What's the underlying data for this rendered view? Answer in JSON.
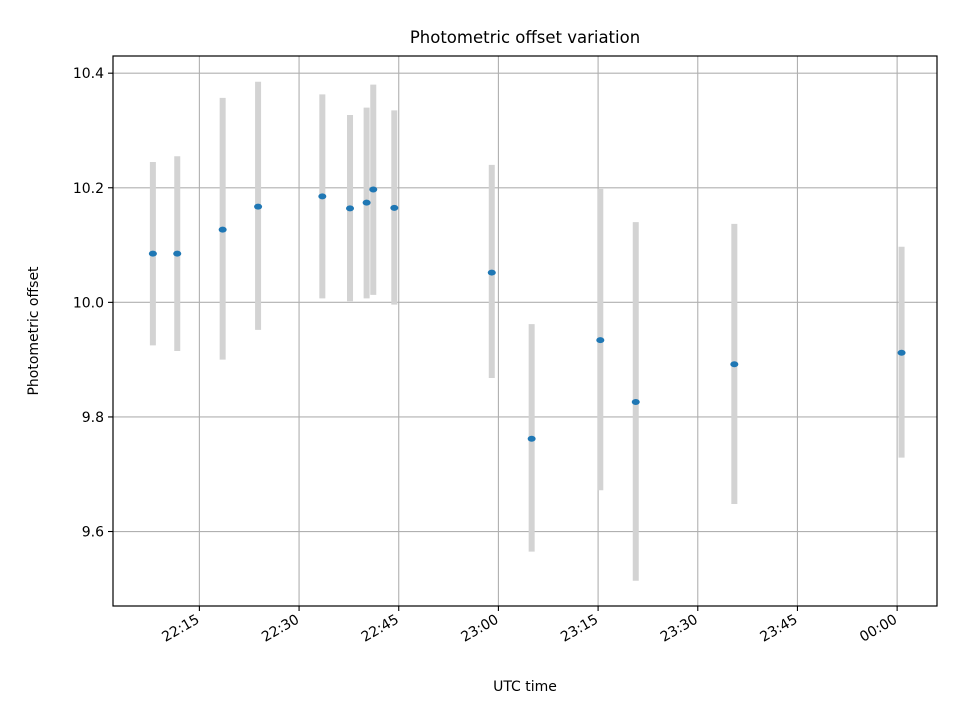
{
  "chart_data": {
    "type": "scatter",
    "title": "Photometric offset variation",
    "xlabel": "UTC time",
    "ylabel": "Photometric offset",
    "xlim": [
      "22:02",
      "00:06"
    ],
    "ylim": [
      9.47,
      10.43
    ],
    "x_ticks": [
      "22:15",
      "22:30",
      "22:45",
      "23:00",
      "23:15",
      "23:30",
      "23:45",
      "00:00"
    ],
    "y_ticks": [
      9.6,
      9.8,
      10.0,
      10.2,
      10.4
    ],
    "grid": true,
    "points": [
      {
        "x": "22:08",
        "y": 10.085,
        "err_low": 9.925,
        "err_high": 10.245
      },
      {
        "x": "22:11:40",
        "y": 10.085,
        "err_low": 9.915,
        "err_high": 10.255
      },
      {
        "x": "22:18:30",
        "y": 10.127,
        "err_low": 9.9,
        "err_high": 10.357
      },
      {
        "x": "22:23:50",
        "y": 10.167,
        "err_low": 9.952,
        "err_high": 10.385
      },
      {
        "x": "22:33:30",
        "y": 10.185,
        "err_low": 10.007,
        "err_high": 10.363
      },
      {
        "x": "22:37:40",
        "y": 10.164,
        "err_low": 10.002,
        "err_high": 10.327
      },
      {
        "x": "22:40:10",
        "y": 10.174,
        "err_low": 10.007,
        "err_high": 10.34
      },
      {
        "x": "22:41:10",
        "y": 10.197,
        "err_low": 10.013,
        "err_high": 10.38
      },
      {
        "x": "22:44:20",
        "y": 10.165,
        "err_low": 9.996,
        "err_high": 10.335
      },
      {
        "x": "22:59",
        "y": 10.052,
        "err_low": 9.868,
        "err_high": 10.24
      },
      {
        "x": "23:05",
        "y": 9.762,
        "err_low": 9.565,
        "err_high": 9.962
      },
      {
        "x": "23:15:20",
        "y": 9.934,
        "err_low": 9.672,
        "err_high": 10.198
      },
      {
        "x": "23:20:40",
        "y": 9.826,
        "err_low": 9.514,
        "err_high": 10.14
      },
      {
        "x": "23:35:30",
        "y": 9.892,
        "err_low": 9.648,
        "err_high": 10.137
      },
      {
        "x": "00:00:40",
        "y": 9.912,
        "err_low": 9.729,
        "err_high": 10.097
      }
    ],
    "colors": {
      "marker": "#1f77b4",
      "errorbar": "#d3d3d3",
      "grid": "#b0b0b0"
    }
  }
}
